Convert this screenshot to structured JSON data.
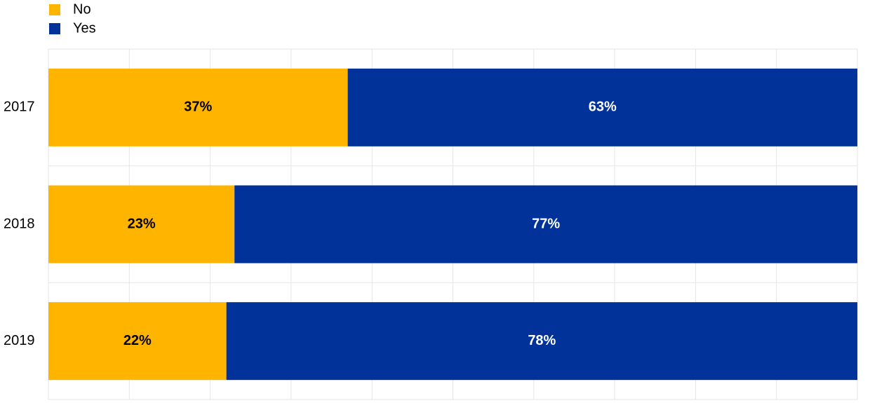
{
  "chart_data": {
    "type": "stacked-barh",
    "categories": [
      "2017",
      "2018",
      "2019"
    ],
    "series": [
      {
        "name": "No",
        "color": "#ffb400",
        "values": [
          37,
          23,
          22
        ],
        "value_labels": [
          "37%",
          "23%",
          "22%"
        ]
      },
      {
        "name": "Yes",
        "color": "#003299",
        "values": [
          63,
          77,
          78
        ],
        "value_labels": [
          "63%",
          "77%",
          "78%"
        ]
      }
    ],
    "xlim": [
      0,
      100
    ],
    "xticks": [
      0,
      10,
      20,
      30,
      40,
      50,
      60,
      70,
      80,
      90,
      100
    ],
    "grid": true,
    "legend": "top-left"
  }
}
